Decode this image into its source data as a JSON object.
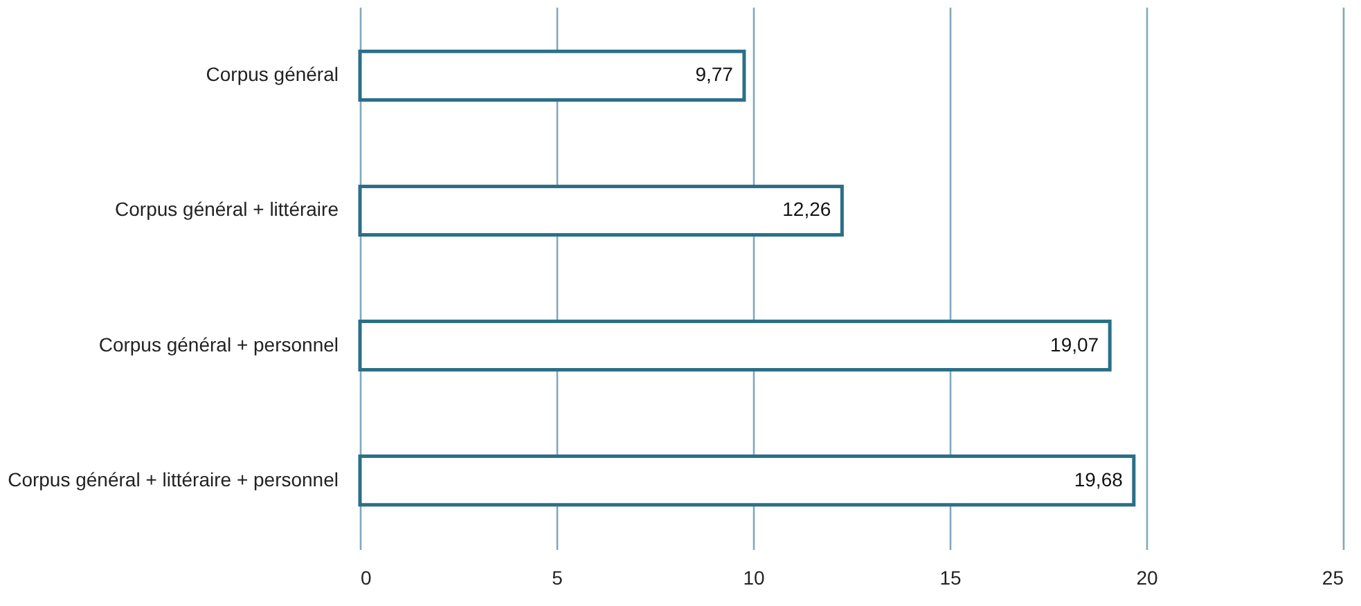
{
  "chart_data": {
    "type": "bar",
    "orientation": "horizontal",
    "categories": [
      "Corpus général",
      "Corpus général + littéraire",
      "Corpus général + personnel",
      "Corpus général + littéraire + personnel"
    ],
    "values": [
      9.77,
      12.26,
      19.07,
      19.68
    ],
    "value_labels": [
      "9,77",
      "12,26",
      "19,07",
      "19,68"
    ],
    "color": "#2b6f87",
    "xlim": [
      0,
      25
    ],
    "xticks": [
      0,
      5,
      10,
      15,
      20,
      25
    ],
    "grid": "x"
  }
}
